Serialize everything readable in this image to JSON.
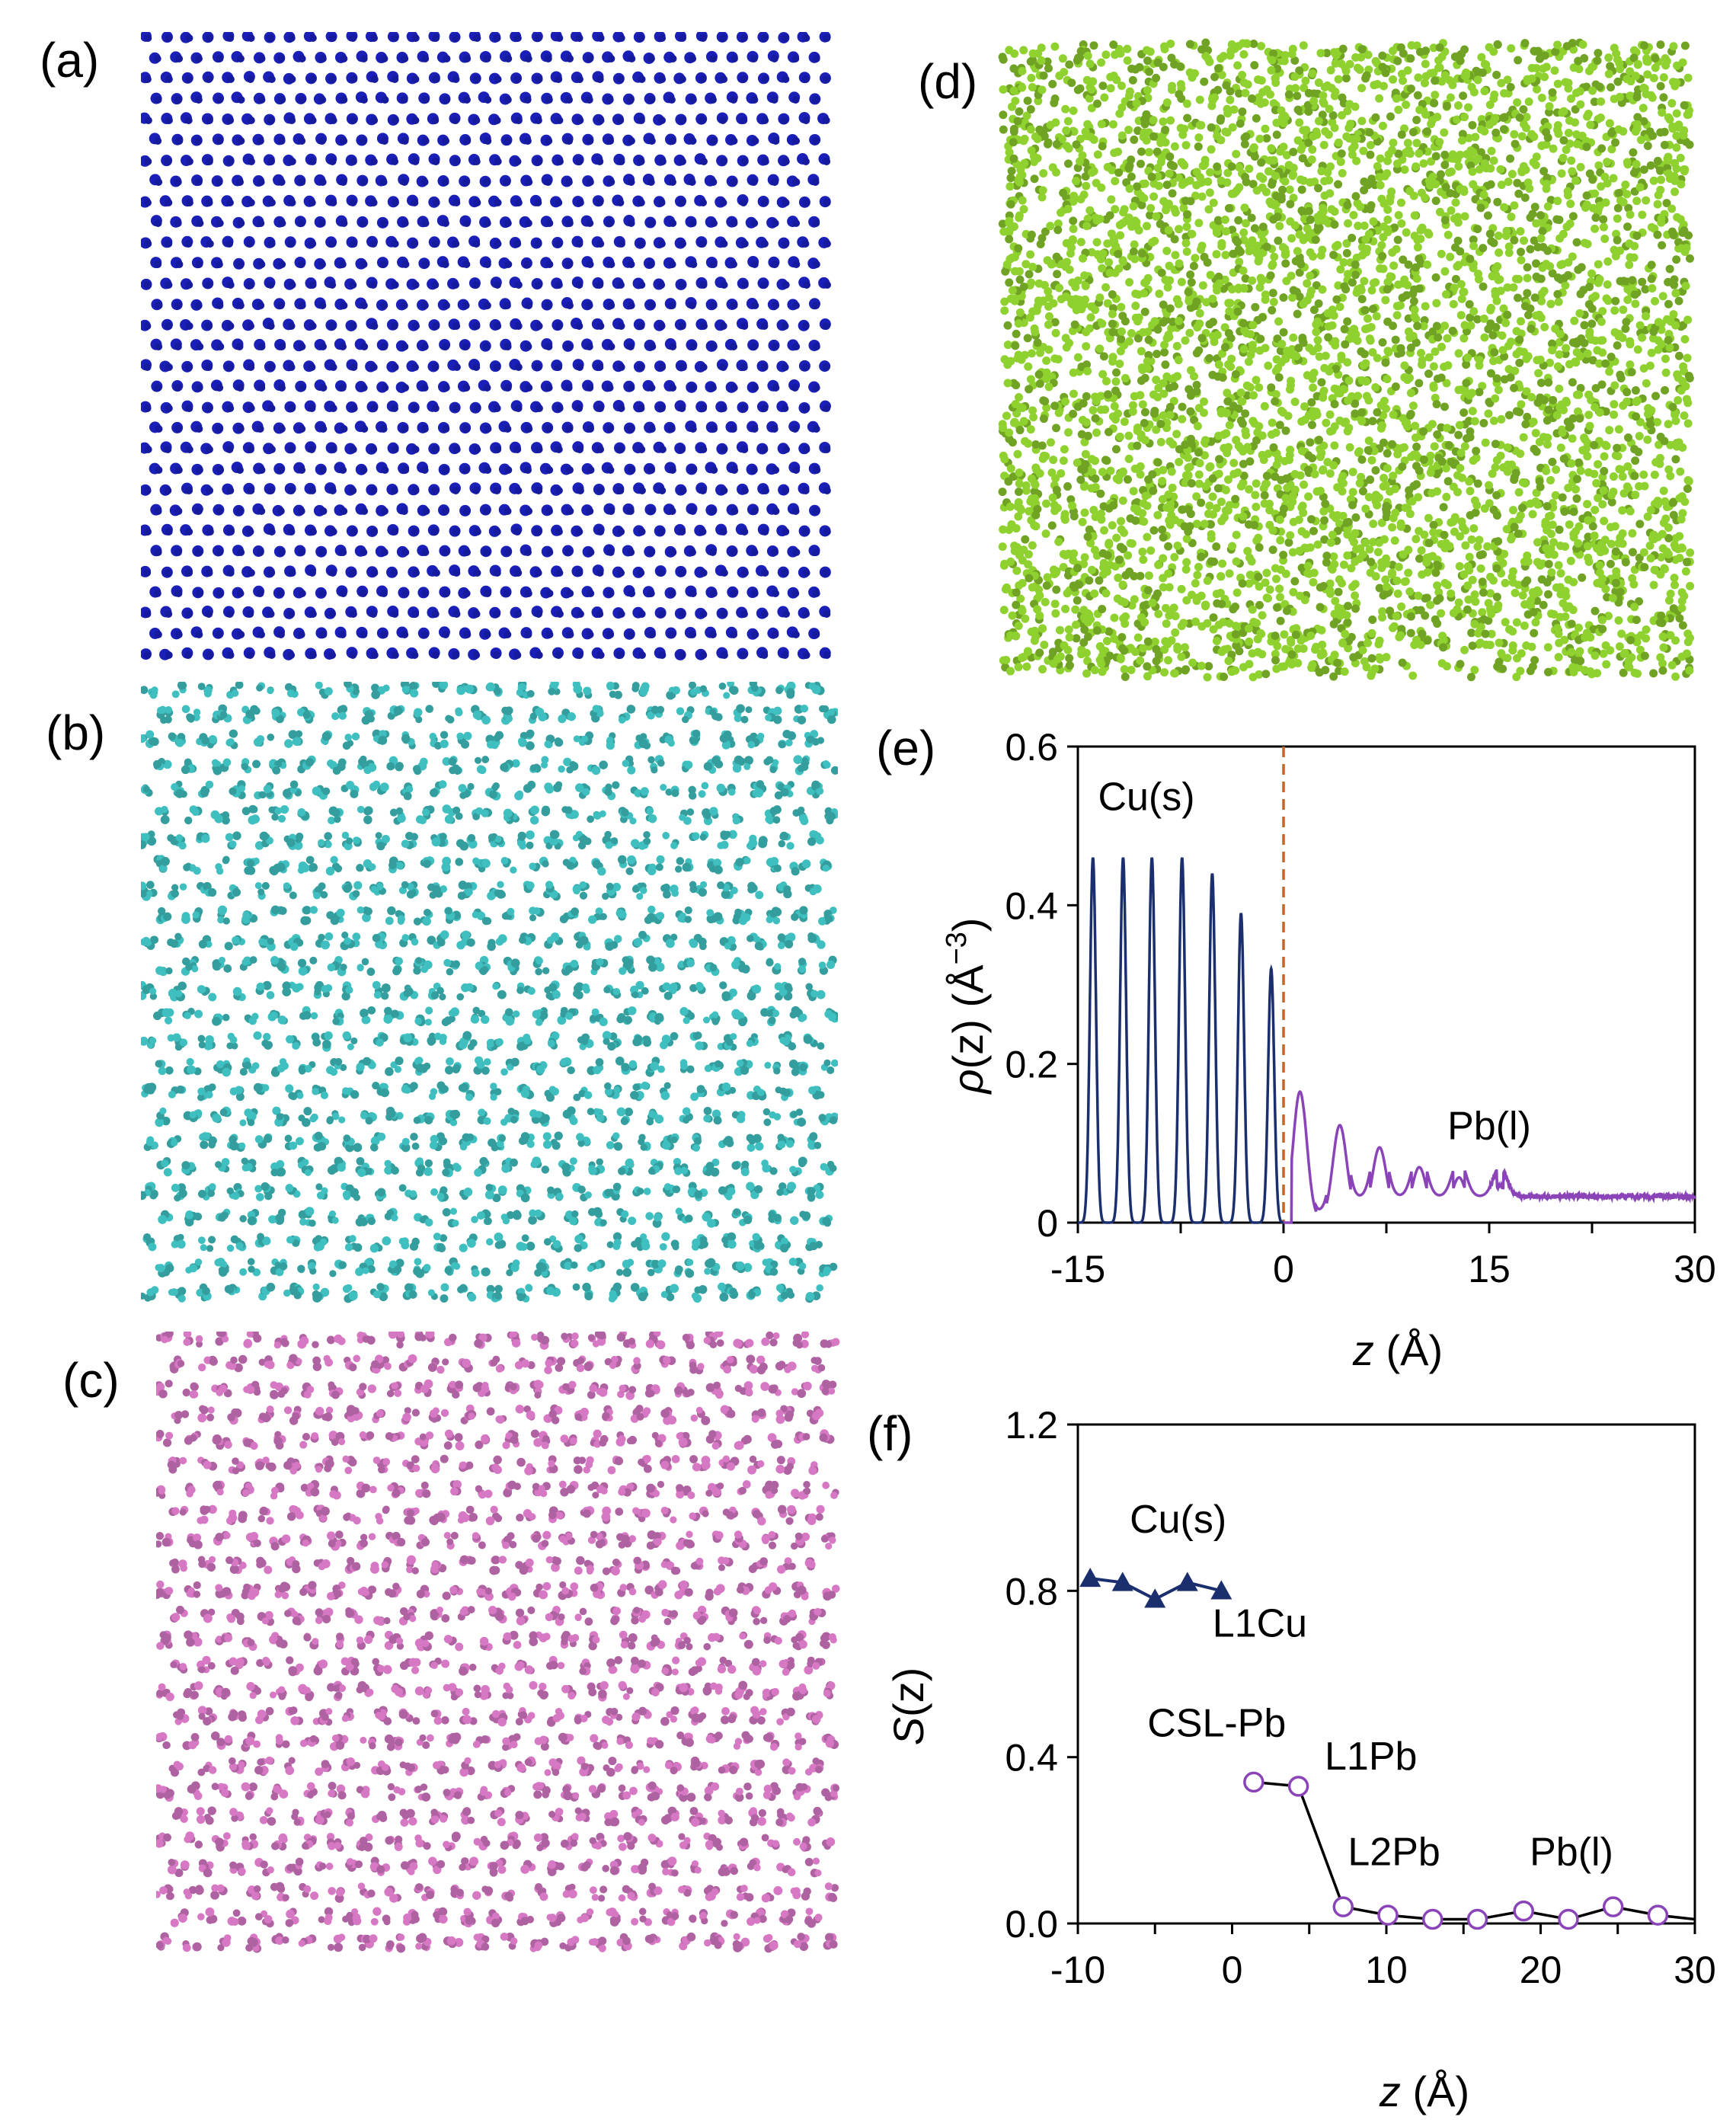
{
  "panel_labels": {
    "a": "(a)",
    "b": "(b)",
    "c": "(c)",
    "d": "(d)",
    "e": "(e)",
    "f": "(f)"
  },
  "atom_panels": [
    {
      "name": "panel-a-atoms",
      "color": "#1a1fb8",
      "pattern": "regular-lattice"
    },
    {
      "name": "panel-b-atoms",
      "color": "#3fbfbf",
      "pattern": "clustered-lattice"
    },
    {
      "name": "panel-c-atoms",
      "color": "#d678c4",
      "pattern": "clustered-lattice"
    },
    {
      "name": "panel-d-atoms",
      "color": "#8fd12e",
      "pattern": "disordered"
    }
  ],
  "chart_data": [
    {
      "id": "e",
      "type": "line",
      "xlabel_var": "z",
      "xlabel_unit": " (Å)",
      "ylabel_var": "ρ",
      "ylabel_arg": "(z)",
      "ylabel_unit": " (Å",
      "ylabel_exp": "−3",
      "ylabel_close": ")",
      "xlim": [
        -15,
        30
      ],
      "ylim": [
        0,
        0.6
      ],
      "xticks": [
        "-15",
        "0",
        "15",
        "30"
      ],
      "yticks": [
        "0",
        "0.2",
        "0.4",
        "0.6"
      ],
      "divider_x": 0,
      "divider_color": "#c0672a",
      "series": [
        {
          "name": "Cu(s)",
          "color": "#1b2f6e",
          "peaks_x": [
            -13.9,
            -11.7,
            -9.6,
            -7.4,
            -5.2,
            -3.1,
            -0.9
          ],
          "peaks_y": [
            0.46,
            0.46,
            0.46,
            0.46,
            0.44,
            0.39,
            0.32
          ],
          "peak_width": 0.22
        },
        {
          "name": "Pb(l)",
          "color": "#8a44b8",
          "peaks_x": [
            1.2,
            4.1,
            7.0,
            9.9,
            12.8,
            15.8
          ],
          "peaks_y": [
            0.165,
            0.115,
            0.085,
            0.06,
            0.047,
            0.037
          ],
          "peak_width": 0.5,
          "baseline": 0.033
        }
      ],
      "annotations": [
        {
          "text": "Cu(s)",
          "x": -10,
          "y": 0.52
        },
        {
          "text": "Pb(l)",
          "x": 15,
          "y": 0.105
        }
      ]
    },
    {
      "id": "f",
      "type": "line",
      "xlabel_var": "z",
      "xlabel_unit": " (Å)",
      "ylabel_var": "S",
      "ylabel_arg": "(z)",
      "xlim": [
        -10,
        30
      ],
      "ylim": [
        0,
        1.2
      ],
      "xticks": [
        "-10",
        "0",
        "10",
        "20",
        "30"
      ],
      "yticks": [
        "0.0",
        "0.4",
        "0.8",
        "1.2"
      ],
      "series": [
        {
          "name": "Cu(s)",
          "color": "#1b2f6e",
          "marker": "filled-triangle",
          "x": [
            -9.2,
            -7.1,
            -5.0,
            -2.9,
            -0.7
          ],
          "y": [
            0.83,
            0.82,
            0.78,
            0.82,
            0.8
          ]
        },
        {
          "name": "Pb(l)",
          "color": "#8a44b8",
          "line_color": "#000000",
          "marker": "open-circle",
          "x": [
            1.4,
            4.3,
            7.2,
            10.1,
            13.0,
            15.9,
            18.9,
            21.8,
            24.7,
            27.6,
            30.0
          ],
          "y": [
            0.34,
            0.33,
            0.04,
            0.02,
            0.01,
            0.01,
            0.03,
            0.01,
            0.04,
            0.02,
            0.01
          ],
          "markers_count": 10
        }
      ],
      "annotations": [
        {
          "text": "Cu(s)",
          "x": -3.5,
          "y": 0.94
        },
        {
          "text": "L1Cu",
          "x": 1.8,
          "y": 0.69
        },
        {
          "text": "CSL-Pb",
          "x": -1,
          "y": 0.45
        },
        {
          "text": "L1Pb",
          "x": 9,
          "y": 0.37
        },
        {
          "text": "L2Pb",
          "x": 10.5,
          "y": 0.14
        },
        {
          "text": "Pb(l)",
          "x": 22,
          "y": 0.14
        }
      ]
    }
  ]
}
